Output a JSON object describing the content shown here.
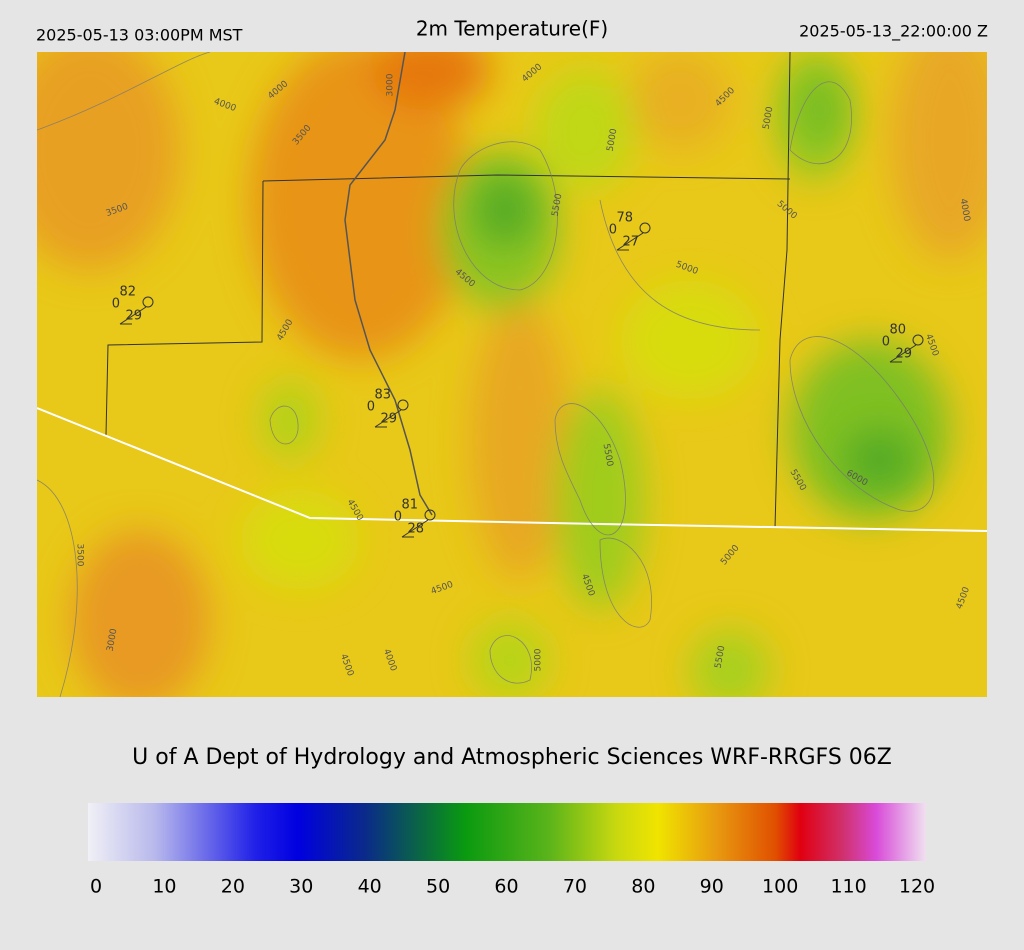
{
  "header": {
    "left": "2025-05-13 03:00PM MST",
    "title": "2m Temperature(F)",
    "right": "2025-05-13_22:00:00 Z"
  },
  "footer": "U of A Dept of Hydrology and Atmospheric Sciences WRF-RRGFS 06Z",
  "contour_labels": [
    "4000",
    "4000",
    "3000",
    "4000",
    "3500",
    "4500",
    "5000",
    "5000",
    "3500",
    "5500",
    "5000",
    "4000",
    "4500",
    "5000",
    "4500",
    "4500",
    "5500",
    "5500",
    "6000",
    "4500",
    "3500",
    "4500",
    "5000",
    "4500",
    "4500",
    "3000",
    "4500",
    "4000",
    "5000",
    "5500"
  ],
  "stations": [
    {
      "temp": "82",
      "calm": "0",
      "dew": "29"
    },
    {
      "temp": "78",
      "calm": "0",
      "dew": "27"
    },
    {
      "temp": "80",
      "calm": "0",
      "dew": "29"
    },
    {
      "temp": "83",
      "calm": "0",
      "dew": "29"
    },
    {
      "temp": "81",
      "calm": "0",
      "dew": "28"
    }
  ],
  "colorbar": {
    "ticks": [
      0,
      10,
      20,
      30,
      40,
      50,
      60,
      70,
      80,
      90,
      100,
      110,
      120
    ]
  }
}
